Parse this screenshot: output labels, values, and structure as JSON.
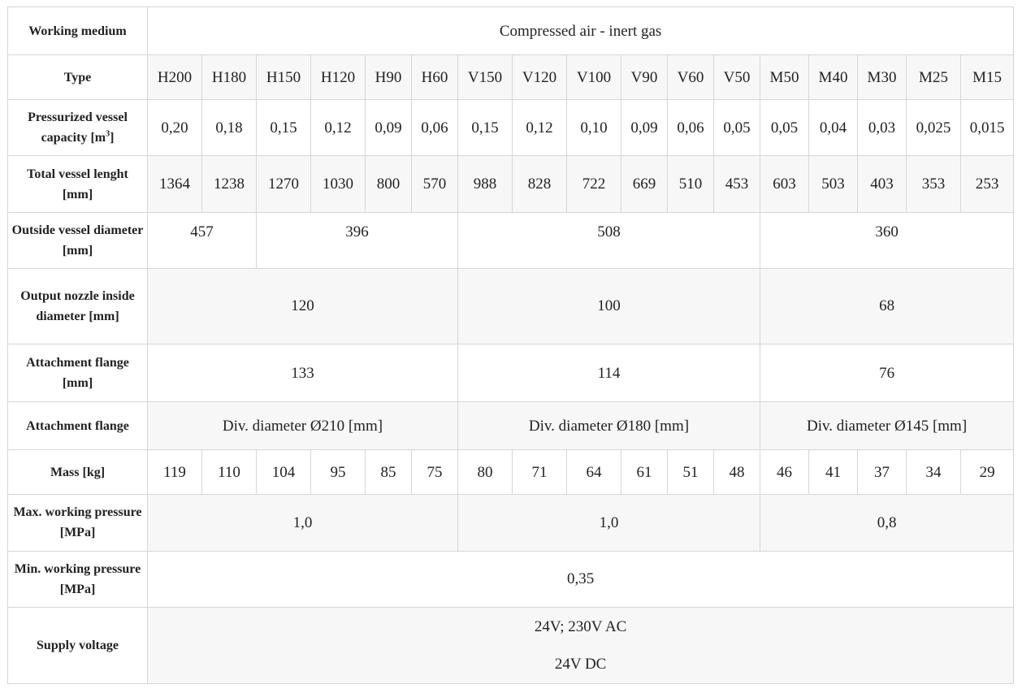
{
  "working_medium": {
    "label": "Working medium",
    "value": "Compressed air - inert gas"
  },
  "type_row": {
    "label": "Type",
    "values": [
      "H200",
      "H180",
      "H150",
      "H120",
      "H90",
      "H60",
      "V150",
      "V120",
      "V100",
      "V90",
      "V60",
      "V50",
      "M50",
      "M40",
      "M30",
      "M25",
      "M15"
    ]
  },
  "capacity": {
    "label": "Pressurized vessel capacity [m",
    "label_sup": "3",
    "label_end": "]",
    "values": [
      "0,20",
      "0,18",
      "0,15",
      "0,12",
      "0,09",
      "0,06",
      "0,15",
      "0,12",
      "0,10",
      "0,09",
      "0,06",
      "0,05",
      "0,05",
      "0,04",
      "0,03",
      "0,025",
      "0,015"
    ]
  },
  "length": {
    "label": "Total vessel lenght [mm]",
    "values": [
      "1364",
      "1238",
      "1270",
      "1030",
      "800",
      "570",
      "988",
      "828",
      "722",
      "669",
      "510",
      "453",
      "603",
      "503",
      "403",
      "353",
      "253"
    ]
  },
  "outside_diameter": {
    "label": "Outside vessel diameter [mm]",
    "values": [
      "457",
      "396",
      "508",
      "360"
    ]
  },
  "nozzle": {
    "label": "Output nozzle inside diameter [mm]",
    "values": [
      "120",
      "100",
      "68"
    ]
  },
  "flange_mm": {
    "label": "Attachment flange [mm]",
    "values": [
      "133",
      "114",
      "76"
    ]
  },
  "flange_div": {
    "label": "Attachment flange",
    "values": [
      "Div. diameter Ø210 [mm]",
      "Div. diameter Ø180 [mm]",
      "Div. diameter Ø145 [mm]"
    ]
  },
  "mass": {
    "label": "Mass [kg]",
    "values": [
      "119",
      "110",
      "104",
      "95",
      "85",
      "75",
      "80",
      "71",
      "64",
      "61",
      "51",
      "48",
      "46",
      "41",
      "37",
      "34",
      "29"
    ]
  },
  "max_pressure": {
    "label": "Max. working pressure [MPa]",
    "values": [
      "1,0",
      "1,0",
      "0,8"
    ]
  },
  "min_pressure": {
    "label": "Min. working pressure [MPa]",
    "value": "0,35"
  },
  "supply": {
    "label": "Supply voltage",
    "line1": "24V; 230V AC",
    "line2": "24V DC"
  }
}
